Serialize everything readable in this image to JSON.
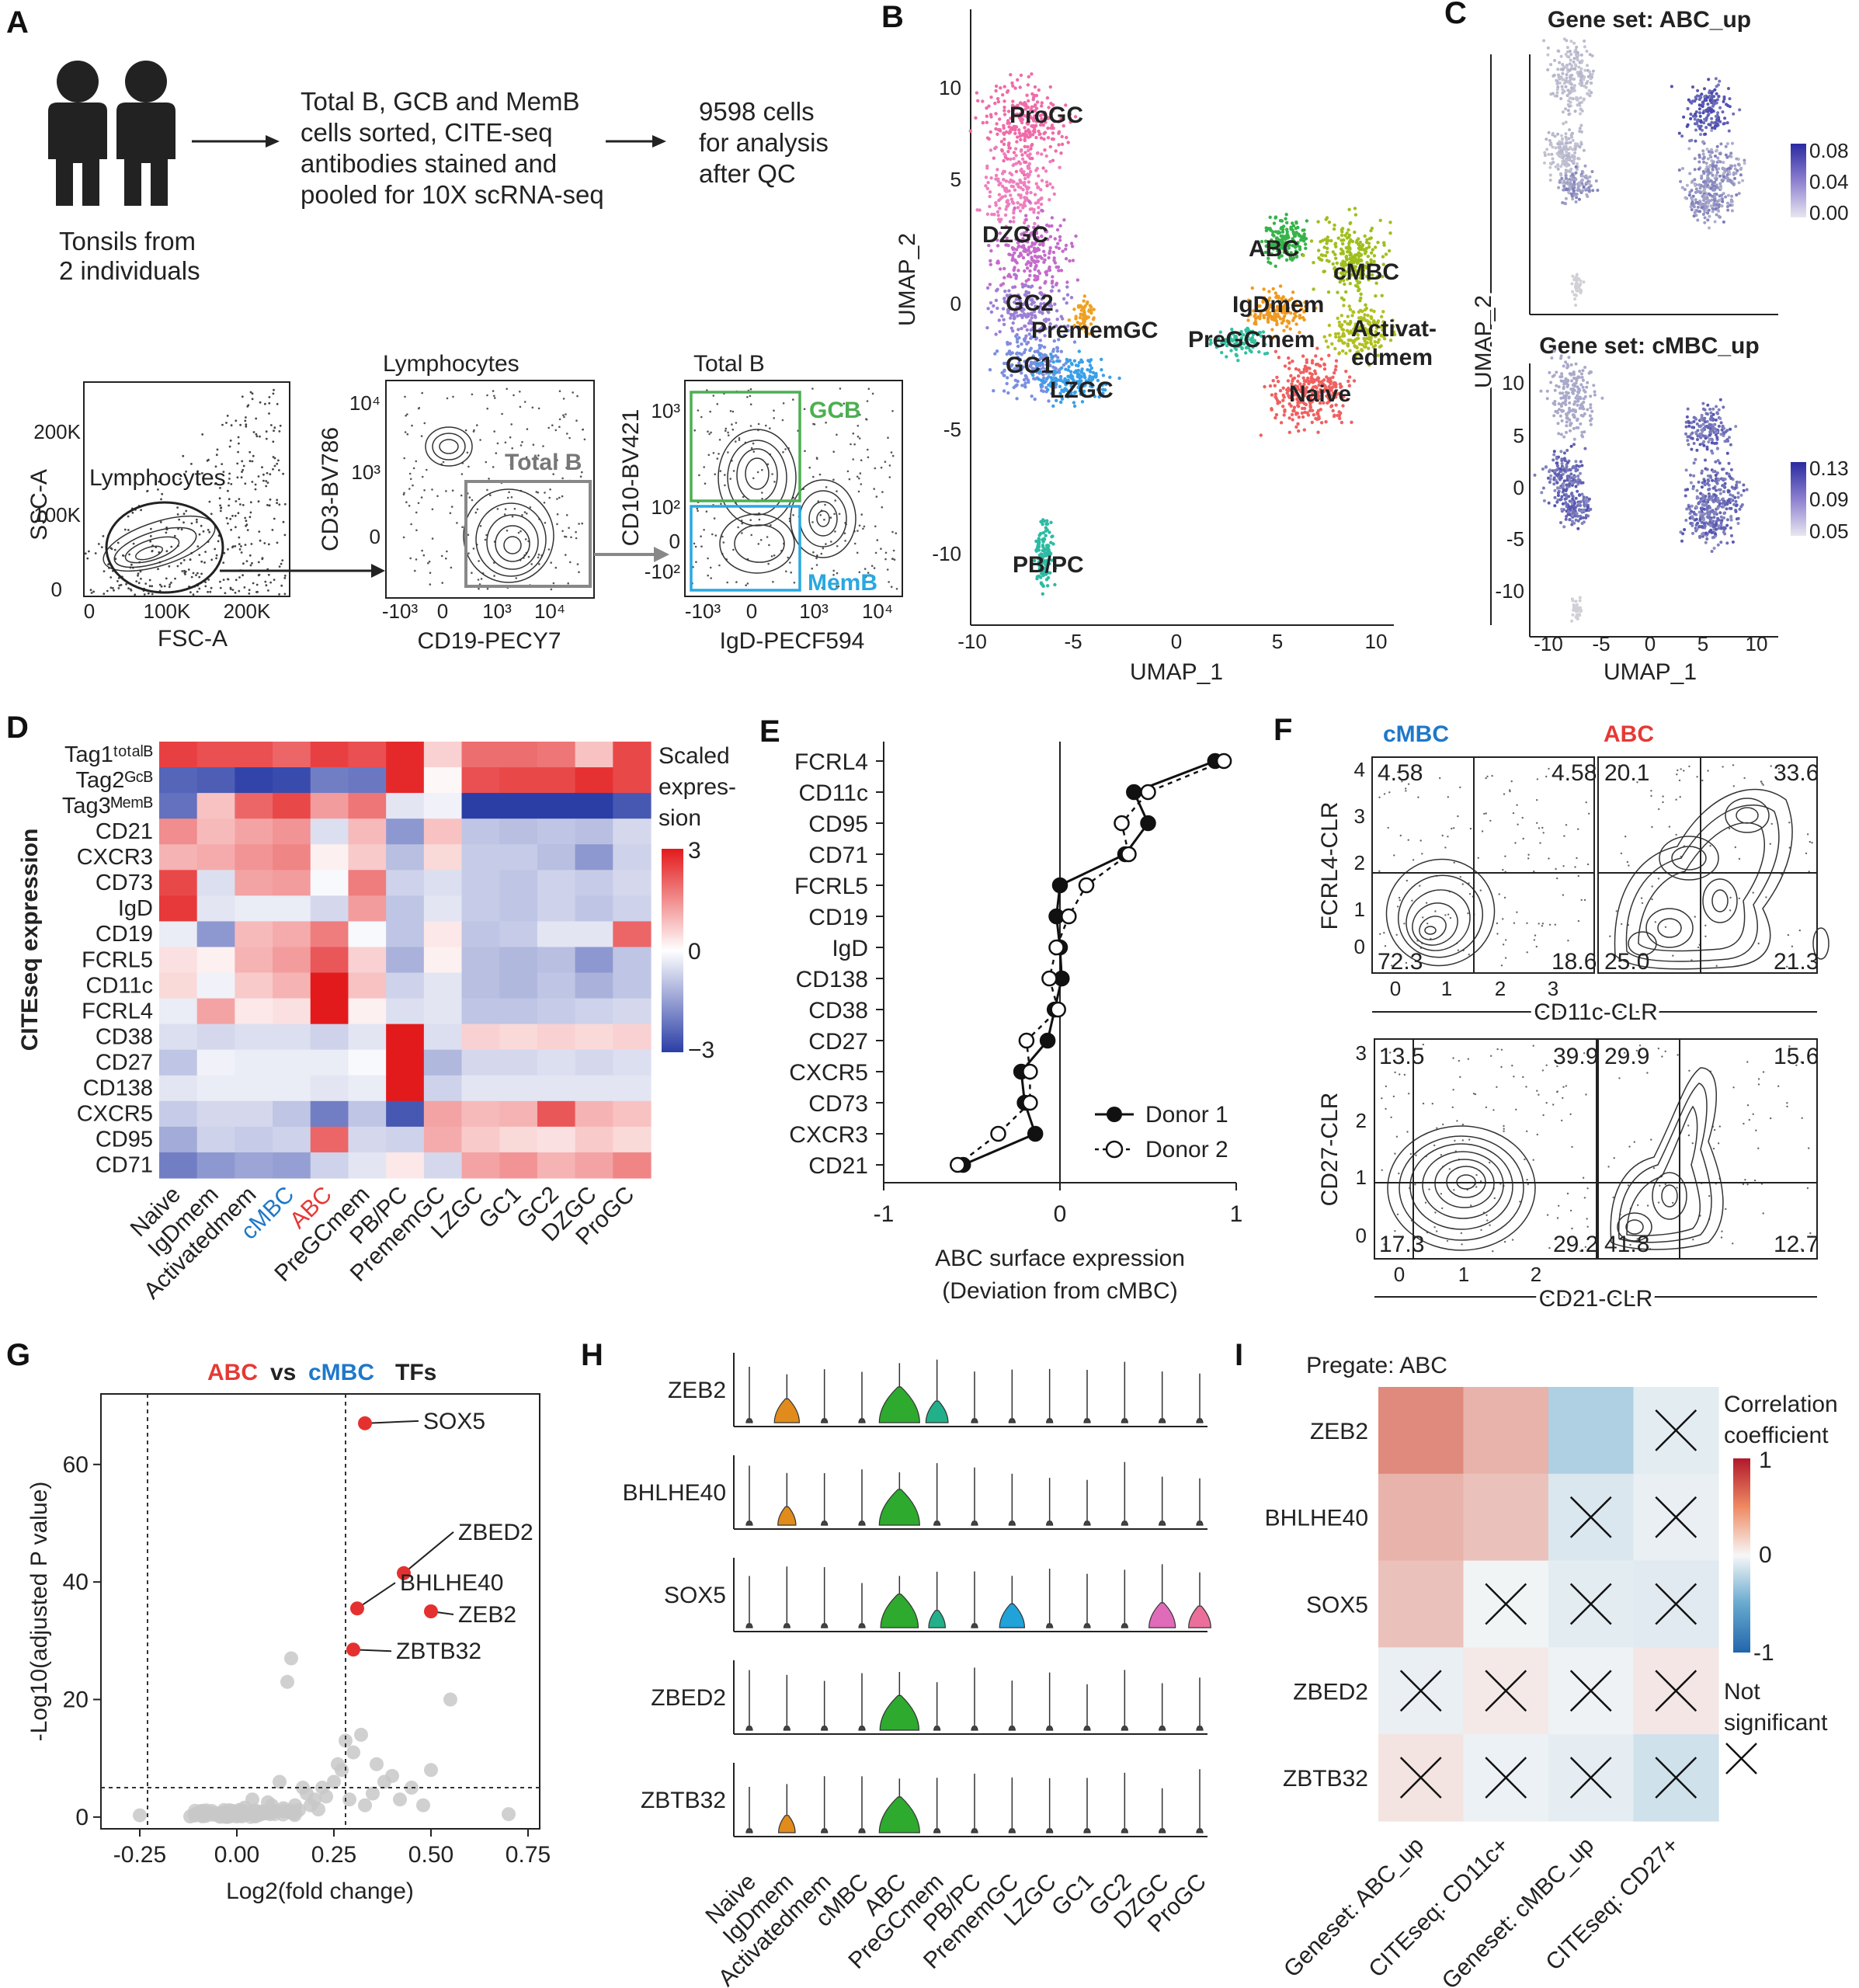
{
  "figure": {
    "panel_labels": [
      "A",
      "B",
      "C",
      "D",
      "E",
      "F",
      "G",
      "H",
      "I"
    ],
    "panel_a": {
      "left_caption": [
        "Tonsils from",
        "2 individuals"
      ],
      "step1": [
        "Total B, GCB and MemB",
        "cells sorted, CITE-seq",
        "antibodies stained and",
        "pooled for 10X scRNA-seq"
      ],
      "step2": [
        "9598 cells",
        "for analysis",
        "after QC"
      ],
      "flow1": {
        "ylabel": "SSC-A",
        "xlabel": "FSC-A",
        "gate": "Lymphocytes",
        "yticks": [
          "0",
          "100K",
          "200K"
        ],
        "xticks": [
          "0",
          "100K",
          "200K"
        ]
      },
      "flow2": {
        "title": "Lymphocytes",
        "ylabel": "CD3-BV786",
        "xlabel": "CD19-PECY7",
        "gate": "Total B",
        "yticks": [
          "10⁴",
          "10³",
          "0"
        ],
        "xticks": [
          "-10³",
          "0",
          "10³",
          "10⁴"
        ]
      },
      "flow3": {
        "title": "Total B",
        "ylabel": "CD10-BV421",
        "xlabel": "IgD-PECF594",
        "gate_top": "GCB",
        "gate_bottom": "MemB",
        "yticks": [
          "10³",
          "10²",
          "0",
          "-10²"
        ],
        "xticks": [
          "-10³",
          "0",
          "10³",
          "10⁴"
        ]
      }
    },
    "panel_b": {
      "xlabel": "UMAP_1",
      "ylabel": "UMAP_2",
      "xticks": [
        "-10",
        "-5",
        "0",
        "5",
        "10"
      ],
      "yticks": [
        "10",
        "5",
        "0",
        "-5",
        "-10"
      ],
      "clusters": [
        "ProGC",
        "DZGC",
        "GC2",
        "PrememGC",
        "GC1",
        "LZGC",
        "PB/PC",
        "ABC",
        "cMBC",
        "IgDmem",
        "PreGCmem",
        "Activat-",
        "edmem",
        "Naive"
      ]
    },
    "panel_c": {
      "title1": "Gene set: ABC_up",
      "title2": "Gene set: cMBC_up",
      "xlabel": "UMAP_1",
      "ylabel": "UMAP_2",
      "scale1": [
        "0.08",
        "0.04",
        "0.00"
      ],
      "scale2": [
        "0.13",
        "0.09",
        "0.05"
      ],
      "xticks": [
        "-10",
        "-5",
        "0",
        "5",
        "10"
      ],
      "yticks": [
        "10",
        "5",
        "0",
        "-5",
        "-10"
      ]
    },
    "panel_d": {
      "ylabel": "CITEseq expression",
      "legend_title": [
        "Scaled",
        "expres-",
        "sion"
      ],
      "legend_ticks": [
        "3",
        "0",
        "−3"
      ]
    },
    "panel_e": {
      "xlabel": [
        "ABC surface expression",
        "(Deviation from cMBC)"
      ],
      "xticks": [
        "-1",
        "0",
        "1"
      ],
      "legend": [
        "Donor 1",
        "Donor 2"
      ]
    },
    "panel_f": {
      "col1": "cMBC",
      "col2": "ABC",
      "row1": {
        "ylabel": "FCRL4-CLR",
        "xlabel": "CD11c-CLR",
        "yticks": [
          "4",
          "3",
          "2",
          "1",
          "0"
        ],
        "xticks": [
          "0",
          "1",
          "2",
          "3"
        ],
        "q_cmbc": [
          "4.58",
          "4.58",
          "72.3",
          "18.6"
        ],
        "q_abc": [
          "20.1",
          "33.6",
          "25.0",
          "21.3"
        ]
      },
      "row2": {
        "ylabel": "CD27-CLR",
        "xlabel": "CD21-CLR",
        "yticks": [
          "3",
          "2",
          "1",
          "0"
        ],
        "xticks": [
          "0",
          "1",
          "2"
        ],
        "q_cmbc": [
          "13.5",
          "39.9",
          "17.3",
          "29.2"
        ],
        "q_abc": [
          "29.9",
          "15.6",
          "41.8",
          "12.7"
        ]
      }
    },
    "panel_g": {
      "title_a": "ABC",
      "title_vs": "vs",
      "title_b": "cMBC",
      "title_c": "TFs",
      "xlabel": "Log2(fold change)",
      "ylabel": "-Log10(adjusted P value)",
      "xticks": [
        "-0.25",
        "0.00",
        "0.25",
        "0.50",
        "0.75"
      ],
      "yticks": [
        "0",
        "20",
        "40",
        "60"
      ]
    },
    "panel_h": {
      "genes": [
        "ZEB2",
        "BHLHE40",
        "SOX5",
        "ZBED2",
        "ZBTB32"
      ]
    },
    "panel_i": {
      "title": "Pregate: ABC",
      "legend_title": [
        "Correlation",
        "coefficient"
      ],
      "legend_ticks": [
        "1",
        "0",
        "-1"
      ],
      "ns_label": [
        "Not",
        "significant"
      ]
    },
    "colors": {
      "abc": "#e53935",
      "cmbc": "#1f78c8",
      "gcb": "#4caf50",
      "memb": "#29a8e0",
      "sig": "#e53030",
      "ns": "#c8c8c8"
    }
  },
  "chart_data": [
    {
      "type": "heatmap",
      "panel": "D",
      "rows": [
        "Tag1ᵗᵒᵗᵃˡᴮ",
        "Tag2ᴳᶜᴮ",
        "Tag3ᴹᵉᵐᴮ",
        "CD21",
        "CXCR3",
        "CD73",
        "IgD",
        "CD19",
        "FCRL5",
        "CD11c",
        "FCRL4",
        "CD38",
        "CD27",
        "CD138",
        "CXCR5",
        "CD95",
        "CD71"
      ],
      "columns": [
        "Naive",
        "IgDmem",
        "Activatedmem",
        "cMBC",
        "ABC",
        "PreGCmem",
        "PB/PC",
        "PrememGC",
        "LZGC",
        "GC1",
        "GC2",
        "DZGC",
        "ProGC"
      ],
      "values": [
        [
          2.5,
          2.3,
          2.3,
          2.0,
          2.5,
          2.3,
          2.8,
          0.6,
          1.9,
          1.9,
          1.8,
          0.8,
          2.4
        ],
        [
          -2.4,
          -2.5,
          -2.9,
          -2.8,
          -2.0,
          -2.1,
          2.8,
          0.1,
          2.3,
          2.4,
          2.4,
          2.7,
          2.4
        ],
        [
          -2.2,
          0.8,
          2.0,
          2.4,
          1.3,
          1.8,
          -0.4,
          -0.2,
          -3.0,
          -3.0,
          -3.0,
          -3.0,
          -2.6
        ],
        [
          1.5,
          0.9,
          1.2,
          1.4,
          -0.5,
          0.9,
          -1.6,
          0.8,
          -0.9,
          -1.0,
          -0.9,
          -1.0,
          -0.6
        ],
        [
          1.0,
          1.1,
          1.4,
          1.6,
          0.2,
          0.7,
          -1.0,
          0.5,
          -0.8,
          -0.8,
          -1.0,
          -1.6,
          -0.7
        ],
        [
          2.4,
          -0.5,
          1.2,
          1.3,
          -0.1,
          1.7,
          -0.7,
          -0.5,
          -0.8,
          -0.9,
          -0.7,
          -0.8,
          -0.6
        ],
        [
          2.6,
          -0.4,
          -0.3,
          -0.3,
          -0.6,
          1.3,
          -0.9,
          -0.4,
          -0.8,
          -0.9,
          -0.7,
          -0.9,
          -0.7
        ],
        [
          -0.3,
          -1.6,
          0.9,
          1.1,
          1.7,
          -0.1,
          -0.9,
          0.3,
          -0.9,
          -0.8,
          -0.4,
          -0.4,
          2.0
        ],
        [
          0.4,
          0.2,
          1.0,
          1.3,
          2.2,
          0.6,
          -1.2,
          0.2,
          -1.0,
          -1.1,
          -1.0,
          -1.6,
          -0.9
        ],
        [
          0.5,
          -0.2,
          0.7,
          1.0,
          3.0,
          0.8,
          -0.7,
          -0.4,
          -1.0,
          -1.1,
          -0.9,
          -1.2,
          -0.9
        ],
        [
          -0.3,
          1.2,
          0.3,
          0.4,
          3.0,
          0.2,
          -0.5,
          -0.4,
          -0.9,
          -0.9,
          -0.8,
          -0.7,
          -0.6
        ],
        [
          -0.5,
          -0.6,
          -0.5,
          -0.5,
          -0.7,
          -0.4,
          3.0,
          -0.5,
          0.6,
          0.5,
          0.6,
          0.5,
          0.6
        ],
        [
          -0.9,
          -0.2,
          -0.3,
          -0.3,
          -0.3,
          -0.1,
          3.0,
          -1.1,
          -0.6,
          -0.6,
          -0.5,
          -0.6,
          -0.5
        ],
        [
          -0.4,
          -0.3,
          -0.3,
          -0.3,
          -0.4,
          -0.3,
          3.0,
          -0.7,
          -0.4,
          -0.4,
          -0.4,
          -0.4,
          -0.4
        ],
        [
          -0.8,
          -0.6,
          -0.6,
          -0.9,
          -2.0,
          -0.9,
          -2.6,
          1.2,
          0.9,
          1.0,
          2.2,
          1.0,
          0.8
        ],
        [
          -1.3,
          -0.7,
          -0.8,
          -0.7,
          2.0,
          -0.6,
          -0.7,
          1.1,
          0.7,
          0.5,
          0.4,
          0.7,
          0.5
        ],
        [
          -2.0,
          -1.6,
          -1.4,
          -1.5,
          -0.7,
          -0.4,
          0.3,
          -0.6,
          1.2,
          1.4,
          1.0,
          1.2,
          1.6
        ]
      ]
    },
    {
      "type": "line",
      "panel": "E",
      "categories": [
        "FCRL4",
        "CD11c",
        "CD95",
        "CD71",
        "FCRL5",
        "CD19",
        "IgD",
        "CD138",
        "CD38",
        "CD27",
        "CXCR5",
        "CD73",
        "CXCR3",
        "CD21"
      ],
      "series": [
        {
          "name": "Donor 1",
          "values": [
            0.88,
            0.42,
            0.5,
            0.37,
            0.0,
            -0.02,
            0.0,
            0.01,
            -0.03,
            -0.07,
            -0.22,
            -0.2,
            -0.14,
            -0.55
          ]
        },
        {
          "name": "Donor 2",
          "values": [
            0.93,
            0.5,
            0.35,
            0.39,
            0.15,
            0.05,
            -0.02,
            -0.06,
            -0.01,
            -0.19,
            -0.17,
            -0.17,
            -0.35,
            -0.58
          ]
        }
      ],
      "xlim": [
        -1,
        1
      ]
    },
    {
      "type": "scatter",
      "panel": "G",
      "labeled": [
        {
          "name": "SOX5",
          "x": 0.33,
          "y": 67
        },
        {
          "name": "ZBED2",
          "x": 0.43,
          "y": 41.5
        },
        {
          "name": "BHLHE40",
          "x": 0.31,
          "y": 35.5
        },
        {
          "name": "ZEB2",
          "x": 0.5,
          "y": 35
        },
        {
          "name": "ZBTB32",
          "x": 0.3,
          "y": 28.5
        }
      ],
      "background": [
        [
          0.14,
          27
        ],
        [
          0.13,
          23
        ],
        [
          0.55,
          20
        ],
        [
          0.32,
          14
        ],
        [
          0.3,
          11
        ],
        [
          0.28,
          13
        ],
        [
          0.5,
          8
        ],
        [
          0.45,
          5
        ],
        [
          0.4,
          7
        ],
        [
          0.38,
          6
        ],
        [
          0.35,
          4
        ],
        [
          0.27,
          8
        ],
        [
          0.25,
          6
        ],
        [
          0.22,
          5
        ],
        [
          0.2,
          3
        ],
        [
          0.18,
          4
        ],
        [
          0.15,
          2
        ],
        [
          0.12,
          1.5
        ],
        [
          0.1,
          1
        ],
        [
          0.08,
          2.5
        ],
        [
          0.05,
          1
        ],
        [
          0.03,
          0.5
        ],
        [
          0.01,
          0.3
        ],
        [
          -0.02,
          0.2
        ],
        [
          -0.05,
          0.3
        ],
        [
          -0.08,
          0.2
        ],
        [
          -0.1,
          0.4
        ],
        [
          0.0,
          0.1
        ],
        [
          0.06,
          0.4
        ],
        [
          0.16,
          1.2
        ],
        [
          0.19,
          2
        ],
        [
          0.23,
          3.5
        ],
        [
          0.26,
          9
        ],
        [
          0.33,
          2
        ],
        [
          0.36,
          9
        ],
        [
          0.42,
          3
        ],
        [
          0.48,
          2
        ],
        [
          -0.25,
          0.3
        ],
        [
          0.7,
          0.5
        ],
        [
          0.11,
          6
        ],
        [
          0.04,
          3
        ],
        [
          0.09,
          2
        ],
        [
          0.02,
          1.6
        ],
        [
          0.14,
          0.8
        ],
        [
          0.21,
          1.3
        ],
        [
          -0.12,
          0.1
        ],
        [
          -0.03,
          0.9
        ],
        [
          0.07,
          0.6
        ],
        [
          0.17,
          5
        ],
        [
          0.29,
          3
        ]
      ],
      "thresholds": {
        "x": [
          -0.23,
          0.28
        ],
        "y": 5
      },
      "xlim": [
        -0.35,
        0.78
      ],
      "ylim": [
        -2,
        72
      ]
    },
    {
      "type": "heatmap",
      "panel": "I",
      "rows": [
        "ZEB2",
        "BHLHE40",
        "SOX5",
        "ZBED2",
        "ZBTB32"
      ],
      "columns": [
        "Geneset: ABC_up",
        "CITEseq: CD11c+",
        "Geneset: cMBC_up",
        "CITEseq: CD27+"
      ],
      "values": [
        [
          0.45,
          0.28,
          -0.25,
          -0.07
        ],
        [
          0.28,
          0.22,
          -0.1,
          -0.05
        ],
        [
          0.22,
          -0.02,
          -0.07,
          -0.08
        ],
        [
          -0.05,
          0.06,
          -0.03,
          0.07
        ],
        [
          0.08,
          -0.04,
          -0.06,
          -0.14
        ]
      ],
      "not_significant": [
        [
          0,
          3
        ],
        [
          1,
          2
        ],
        [
          1,
          3
        ],
        [
          2,
          1
        ],
        [
          2,
          2
        ],
        [
          2,
          3
        ],
        [
          3,
          0
        ],
        [
          3,
          1
        ],
        [
          3,
          2
        ],
        [
          3,
          3
        ],
        [
          4,
          0
        ],
        [
          4,
          1
        ],
        [
          4,
          2
        ],
        [
          4,
          3
        ]
      ],
      "range": [
        -1,
        1
      ]
    }
  ]
}
